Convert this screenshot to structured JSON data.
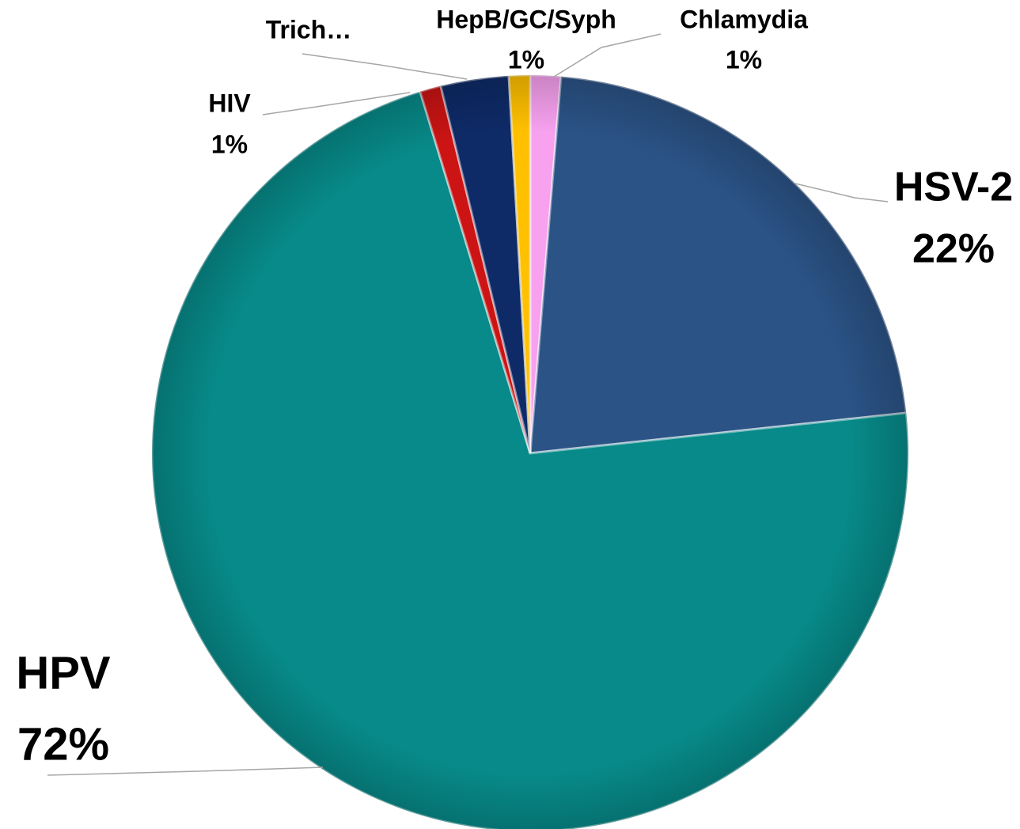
{
  "chart_data": {
    "type": "pie",
    "categories": [
      "Chlamydia",
      "HSV-2",
      "HPV",
      "HIV",
      "Trich…",
      "HepB/GC/Syph"
    ],
    "values": [
      1.3,
      22,
      72,
      0.9,
      2.9,
      0.9
    ],
    "value_labels": [
      "1%",
      "22%",
      "72%",
      "1%",
      null,
      "1%"
    ],
    "colors": [
      "#f7a1ef",
      "#2b5386",
      "#078a89",
      "#cc1414",
      "#0e2b68",
      "#ffc000"
    ],
    "start_angle": 0,
    "direction": "clockwise"
  }
}
